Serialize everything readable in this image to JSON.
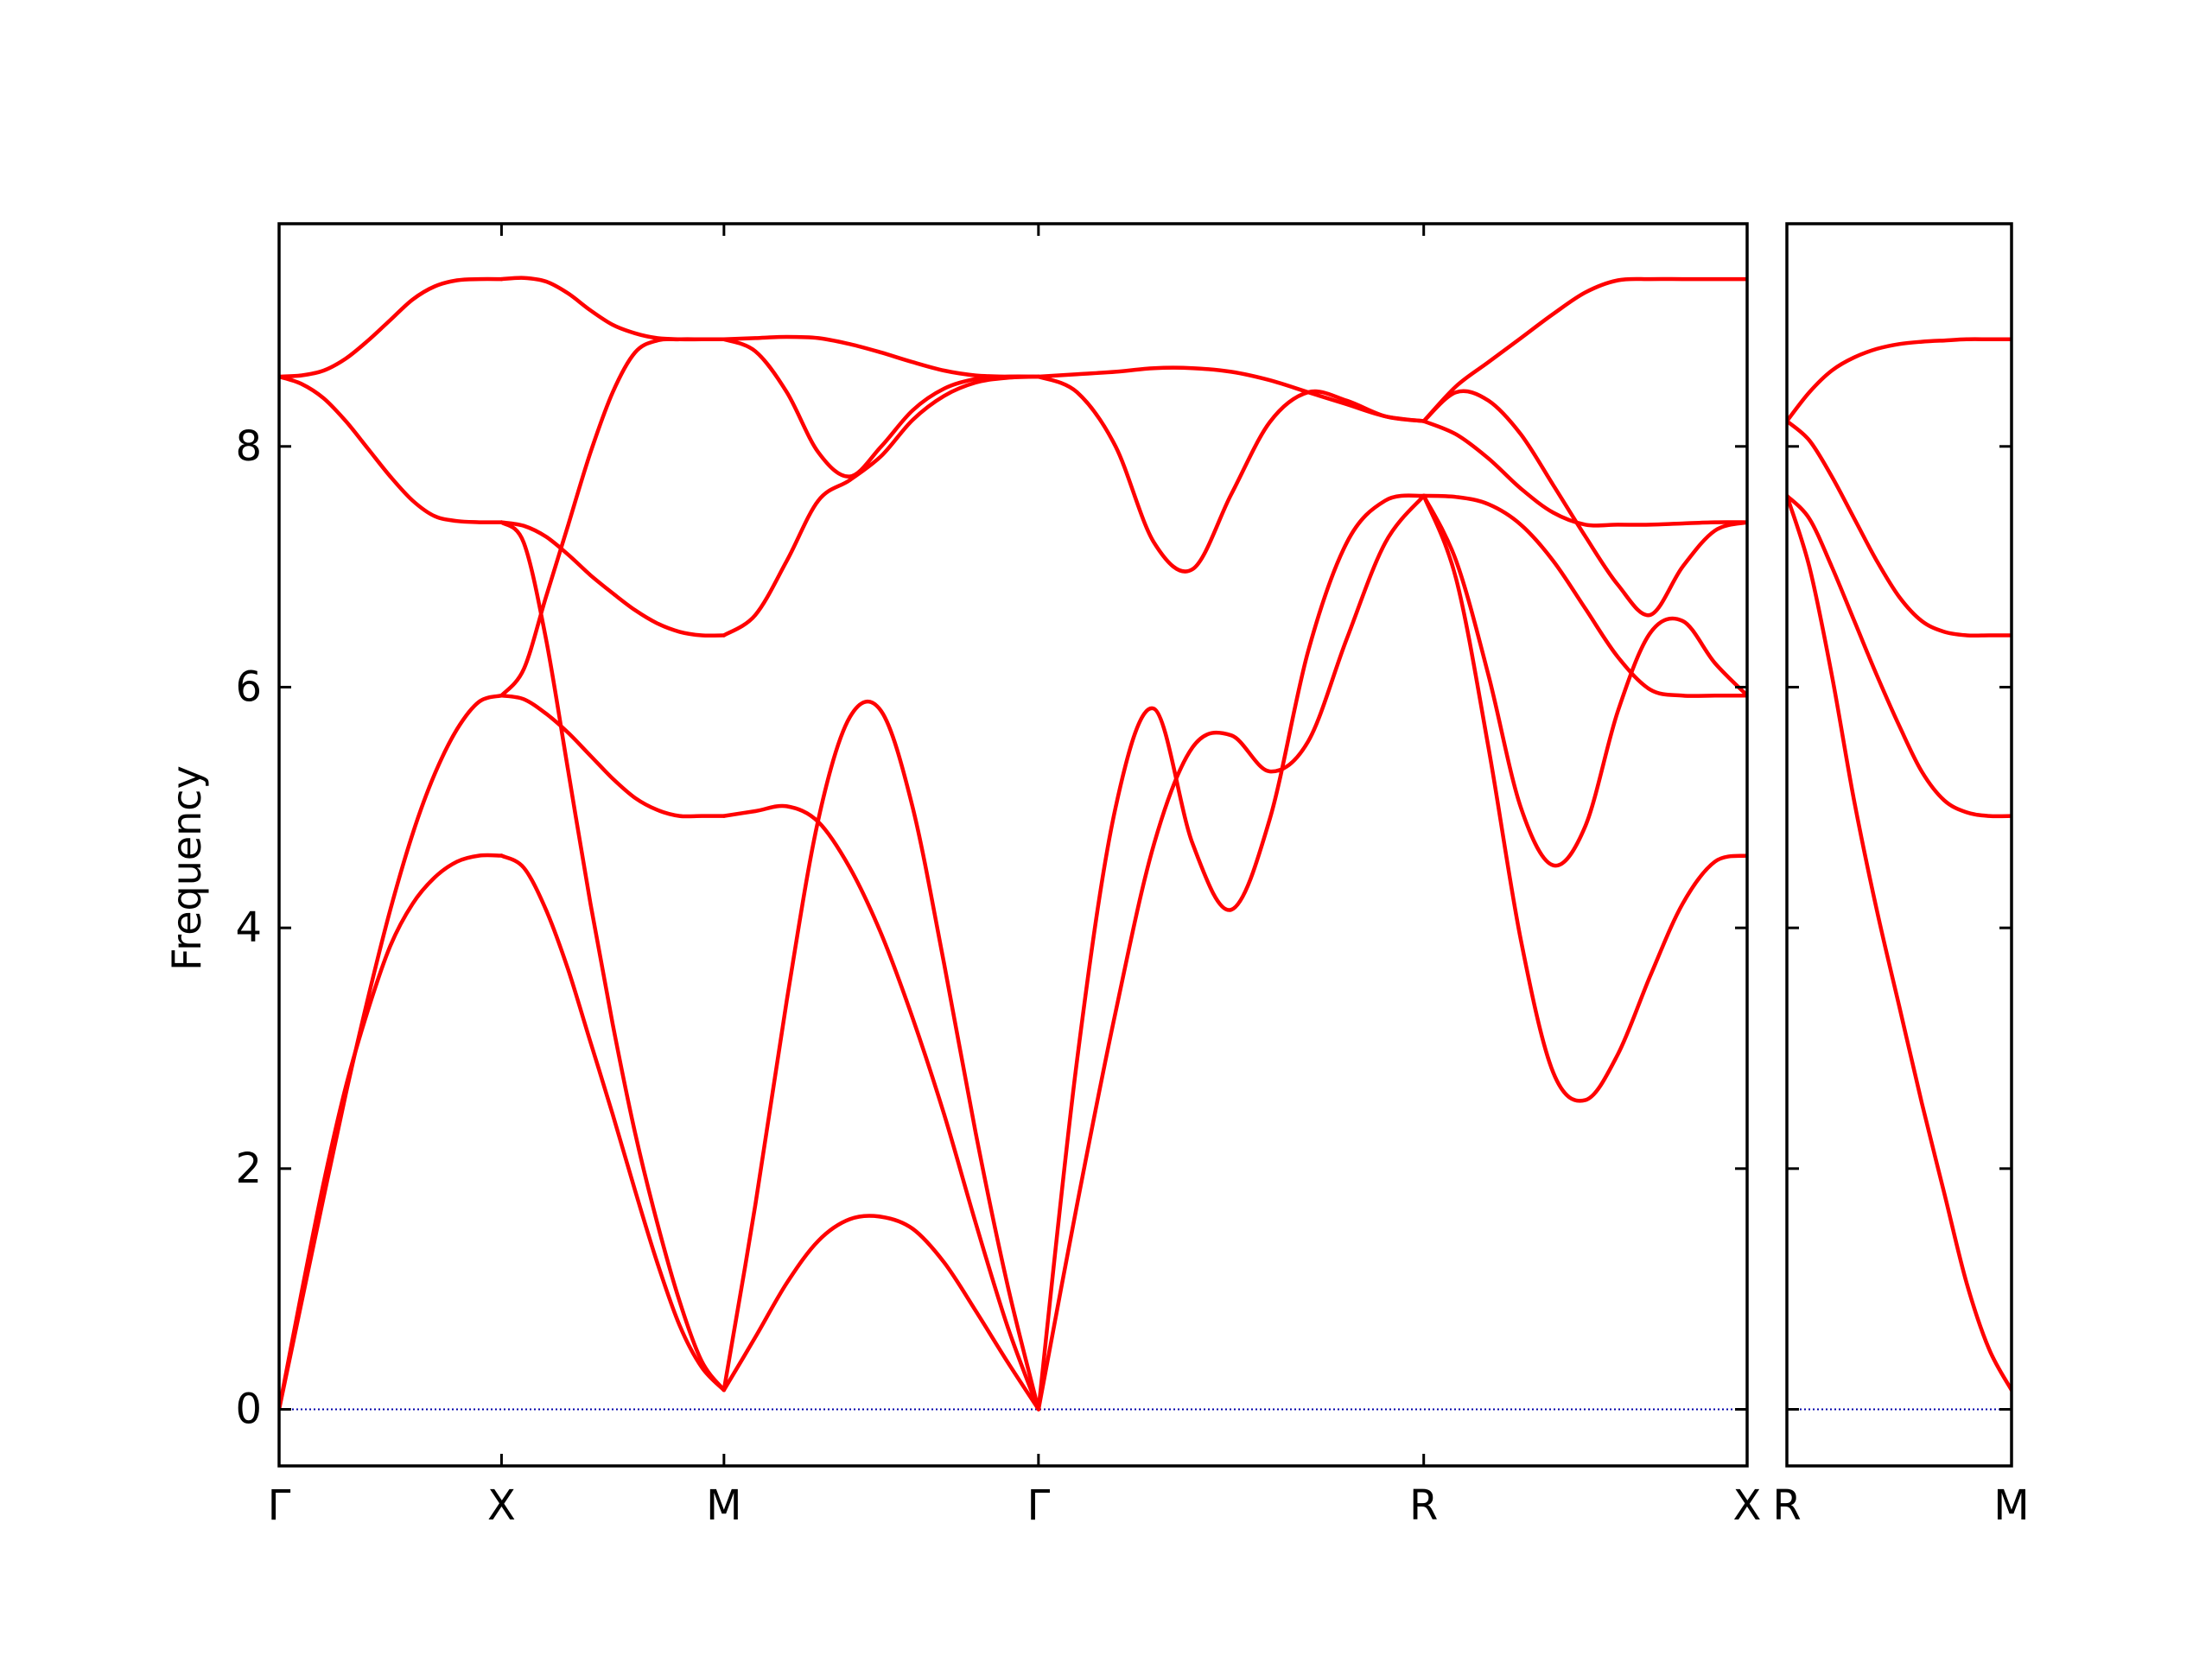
{
  "chart_data": {
    "type": "line",
    "title": "",
    "ylabel": "Frequency",
    "xlabel": "",
    "ylim": [
      -0.47,
      9.85
    ],
    "yticks": [
      0,
      2,
      4,
      6,
      8
    ],
    "ytick_labels": [
      "0",
      "2",
      "4",
      "6",
      "8"
    ],
    "grid": false,
    "legend": "none",
    "zero_line_color": "#0000aa",
    "band_color": "#ff0000",
    "panels": [
      {
        "name": "main",
        "xlim": [
          0,
          6.6
        ],
        "ticks": [
          {
            "label": "Γ",
            "x": 0
          },
          {
            "label": "X",
            "x": 1
          },
          {
            "label": "M",
            "x": 2
          },
          {
            "label": "Γ",
            "x": 3.414
          },
          {
            "label": "R",
            "x": 5.146
          },
          {
            "label": "X",
            "x": 6.6
          }
        ],
        "segments": [
          {
            "name": "Γ-X",
            "x": [
              0,
              0.1,
              0.2,
              0.3,
              0.4,
              0.5,
              0.6,
              0.7,
              0.8,
              0.9,
              1.0
            ],
            "bands": [
              [
                0.0,
                0.96,
                1.88,
                2.68,
                3.32,
                3.85,
                4.2,
                4.42,
                4.55,
                4.6,
                4.6
              ],
              [
                0.0,
                0.88,
                1.76,
                2.62,
                3.42,
                4.15,
                4.78,
                5.28,
                5.65,
                5.88,
                5.93
              ],
              [
                8.58,
                8.52,
                8.4,
                8.21,
                7.98,
                7.75,
                7.55,
                7.42,
                7.38,
                7.37,
                7.37
              ],
              [
                8.58,
                8.59,
                8.63,
                8.73,
                8.88,
                9.05,
                9.22,
                9.33,
                9.38,
                9.39,
                9.39
              ]
            ]
          },
          {
            "name": "X-M",
            "x": [
              1.0,
              1.1,
              1.2,
              1.3,
              1.4,
              1.5,
              1.6,
              1.7,
              1.8,
              1.9,
              2.0
            ],
            "bands": [
              [
                4.6,
                4.5,
                4.15,
                3.65,
                3.05,
                2.45,
                1.82,
                1.22,
                0.7,
                0.35,
                0.16
              ],
              [
                7.37,
                7.2,
                6.4,
                5.3,
                4.2,
                3.2,
                2.3,
                1.55,
                0.9,
                0.4,
                0.16
              ],
              [
                5.93,
                5.9,
                5.78,
                5.62,
                5.43,
                5.24,
                5.08,
                4.98,
                4.93,
                4.93,
                4.93
              ],
              [
                7.37,
                7.34,
                7.25,
                7.1,
                6.93,
                6.78,
                6.64,
                6.53,
                6.46,
                6.43,
                6.43
              ],
              [
                5.93,
                6.15,
                6.75,
                7.35,
                7.95,
                8.45,
                8.78,
                8.88,
                8.89,
                8.89,
                8.89
              ],
              [
                9.39,
                9.4,
                9.37,
                9.27,
                9.13,
                9.01,
                8.94,
                8.9,
                8.89,
                8.89,
                8.89
              ]
            ]
          },
          {
            "name": "M-Γ",
            "x": [
              2.0,
              2.1414,
              2.2828,
              2.4243,
              2.5657,
              2.7071,
              2.8485,
              2.9899,
              3.1314,
              3.2728,
              3.4142
            ],
            "bands": [
              [
                0.16,
                0.6,
                1.05,
                1.4,
                1.58,
                1.6,
                1.5,
                1.22,
                0.82,
                0.4,
                0.0
              ],
              [
                0.16,
                1.7,
                3.4,
                4.9,
                5.75,
                5.8,
                5.0,
                3.7,
                2.3,
                1.05,
                0.0
              ],
              [
                4.93,
                4.97,
                5.01,
                4.88,
                4.5,
                3.95,
                3.25,
                2.45,
                1.55,
                0.7,
                0.0
              ],
              [
                6.43,
                6.6,
                7.05,
                7.55,
                7.72,
                7.92,
                8.22,
                8.42,
                8.53,
                8.57,
                8.58
              ],
              [
                8.89,
                8.79,
                8.45,
                7.95,
                7.75,
                8.0,
                8.3,
                8.48,
                8.56,
                8.58,
                8.58
              ],
              [
                8.89,
                8.9,
                8.91,
                8.9,
                8.85,
                8.78,
                8.7,
                8.63,
                8.59,
                8.58,
                8.58
              ]
            ]
          },
          {
            "name": "Γ-R",
            "x": [
              3.4142,
              3.5874,
              3.7606,
              3.9338,
              4.107,
              4.2802,
              4.4534,
              4.6266,
              4.7998,
              4.973,
              5.1463
            ],
            "bands": [
              [
                0.0,
                1.7,
                3.3,
                4.7,
                5.5,
                5.6,
                5.3,
                5.55,
                6.4,
                7.2,
                7.59
              ],
              [
                0.0,
                2.9,
                5.0,
                5.82,
                4.7,
                4.15,
                4.9,
                6.3,
                7.2,
                7.55,
                7.59
              ],
              [
                8.58,
                8.45,
                8.0,
                7.2,
                6.98,
                7.6,
                8.2,
                8.45,
                8.38,
                8.25,
                8.21
              ],
              [
                8.58,
                8.6,
                8.62,
                8.65,
                8.65,
                8.62,
                8.55,
                8.45,
                8.35,
                8.25,
                8.21
              ]
            ]
          },
          {
            "name": "R-X",
            "x": [
              5.1463,
              5.2917,
              5.4371,
              5.5826,
              5.728,
              5.8734,
              6.0189,
              6.1643,
              6.3097,
              6.4552,
              6.6006
            ],
            "bands": [
              [
                7.59,
                6.9,
                5.5,
                3.9,
                2.8,
                2.57,
                2.95,
                3.6,
                4.2,
                4.55,
                4.6
              ],
              [
                7.59,
                7.05,
                6.1,
                5.0,
                4.52,
                4.85,
                5.8,
                6.45,
                6.55,
                6.2,
                5.93
              ],
              [
                7.59,
                7.58,
                7.52,
                7.35,
                7.05,
                6.65,
                6.25,
                5.98,
                5.93,
                5.93,
                5.93
              ],
              [
                8.21,
                8.1,
                7.9,
                7.65,
                7.45,
                7.35,
                7.35,
                7.35,
                7.36,
                7.37,
                7.37
              ],
              [
                8.21,
                8.45,
                8.38,
                8.1,
                7.68,
                7.25,
                6.85,
                6.6,
                7.0,
                7.3,
                7.37
              ],
              [
                8.21,
                8.5,
                8.7,
                8.9,
                9.1,
                9.28,
                9.38,
                9.39,
                9.39,
                9.39,
                9.39
              ]
            ]
          }
        ]
      },
      {
        "name": "right",
        "xlim": [
          0,
          1
        ],
        "ticks": [
          {
            "label": "R",
            "x": 0
          },
          {
            "label": "M",
            "x": 1
          }
        ],
        "segments": [
          {
            "name": "R-M",
            "x": [
              0,
              0.1,
              0.2,
              0.3,
              0.4,
              0.5,
              0.6,
              0.7,
              0.8,
              0.9,
              1.0
            ],
            "bands": [
              [
                7.59,
                7.0,
                6.1,
                5.05,
                4.15,
                3.35,
                2.55,
                1.8,
                1.05,
                0.5,
                0.16
              ],
              [
                7.59,
                7.4,
                7.0,
                6.55,
                6.1,
                5.68,
                5.3,
                5.06,
                4.96,
                4.93,
                4.93
              ],
              [
                8.21,
                8.05,
                7.75,
                7.4,
                7.05,
                6.75,
                6.55,
                6.46,
                6.43,
                6.43,
                6.43
              ],
              [
                8.21,
                8.45,
                8.63,
                8.74,
                8.81,
                8.85,
                8.87,
                8.88,
                8.89,
                8.89,
                8.89
              ]
            ]
          }
        ]
      }
    ]
  }
}
